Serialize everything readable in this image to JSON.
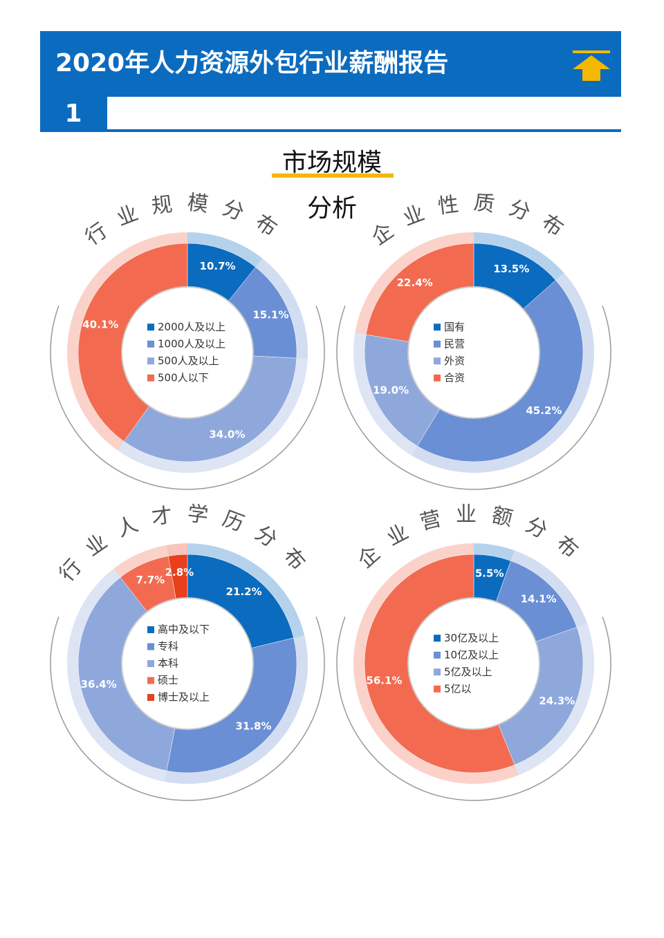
{
  "header": {
    "title": "2020年人力资源外包行业薪酬报告",
    "page_number": "1"
  },
  "section_title": [
    "市场规模",
    "分析"
  ],
  "chart_data": [
    {
      "type": "donut",
      "title": "行业规模分布",
      "categories": [
        "2000人及以上",
        "1000人及以上",
        "500人及以上",
        "500人以下"
      ],
      "values": [
        10.7,
        15.1,
        34.0,
        40.1
      ],
      "value_labels": [
        "10.7%",
        "15.1%",
        "34.0%",
        "40.1%"
      ],
      "colors": [
        "#0b6bbf",
        "#6a8fd4",
        "#8fa8dc",
        "#f26b50"
      ]
    },
    {
      "type": "donut",
      "title": "企业性质分布",
      "categories": [
        "国有",
        "民营",
        "外资",
        "合资"
      ],
      "values": [
        13.5,
        45.2,
        19.0,
        22.4
      ],
      "value_labels": [
        "13.5%",
        "45.2%",
        "19.0%",
        "22.4%"
      ],
      "colors": [
        "#0b6bbf",
        "#6a8fd4",
        "#8fa8dc",
        "#f26b50"
      ]
    },
    {
      "type": "donut",
      "title": "行业人才学历分布",
      "categories": [
        "高中及以下",
        "专科",
        "本科",
        "硕士",
        "博士及以上"
      ],
      "values": [
        21.2,
        31.8,
        36.4,
        7.7,
        2.8
      ],
      "value_labels": [
        "21.2%",
        "31.8%",
        "36.4%",
        "7.7%",
        "2.8%"
      ],
      "colors": [
        "#0b6bbf",
        "#6a8fd4",
        "#8fa8dc",
        "#f26b50",
        "#e8401c"
      ]
    },
    {
      "type": "donut",
      "title": "企业营业额分布",
      "categories": [
        "30亿及以上",
        "10亿及以上",
        "5亿及以上",
        "5亿以"
      ],
      "values": [
        5.5,
        14.1,
        24.3,
        56.1
      ],
      "value_labels": [
        "5.5%",
        "14.1%",
        "24.3%",
        "56.1%"
      ],
      "colors": [
        "#0b6bbf",
        "#6a8fd4",
        "#8fa8dc",
        "#f26b50"
      ]
    }
  ]
}
